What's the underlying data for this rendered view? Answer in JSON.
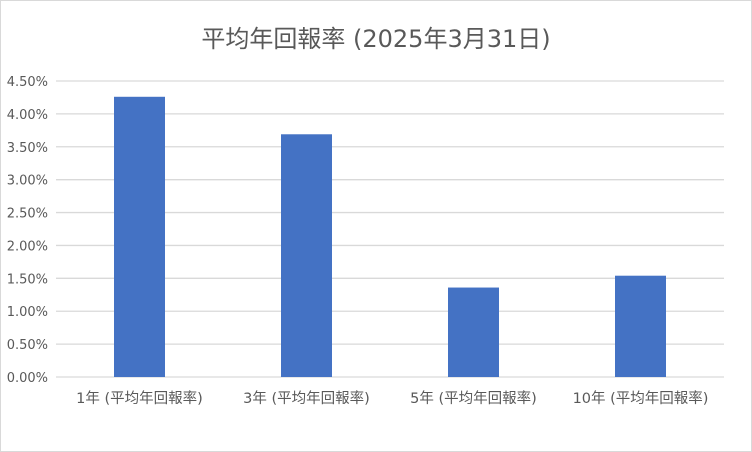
{
  "chart_data": {
    "type": "bar",
    "title": "平均年回報率 (2025年3月31日)",
    "categories": [
      "1年 (平均年回報率)",
      "3年 (平均年回報率)",
      "5年 (平均年回報率)",
      "10年 (平均年回報率)"
    ],
    "values": [
      4.26,
      3.69,
      1.36,
      1.54
    ],
    "value_unit": "%",
    "ylim": [
      0,
      4.5
    ],
    "yticks": [
      "0.00%",
      "0.50%",
      "1.00%",
      "1.50%",
      "2.00%",
      "2.50%",
      "3.00%",
      "3.50%",
      "4.00%",
      "4.50%"
    ],
    "xlabel": "",
    "ylabel": "",
    "grid": true,
    "legend": "none",
    "bar_color": "#4472C4"
  }
}
